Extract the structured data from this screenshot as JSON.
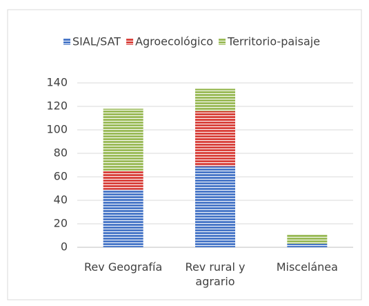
{
  "chart_data": {
    "type": "stacked_bar",
    "categories": [
      "Rev Geografía",
      "Rev rural y agrario",
      "Miscelánea"
    ],
    "series": [
      {
        "name": "SIAL/SAT",
        "color": "#4a78c8",
        "values": [
          49,
          69,
          3
        ]
      },
      {
        "name": "Agroecológico",
        "color": "#d9433d",
        "values": [
          16,
          47,
          0
        ]
      },
      {
        "name": "Territorio-paisaje",
        "color": "#9bbb59",
        "values": [
          53,
          19,
          8
        ]
      }
    ],
    "ylim": [
      0,
      140
    ],
    "yticks": [
      0,
      20,
      40,
      60,
      80,
      100,
      120,
      140
    ],
    "grid": true,
    "legend": "top"
  }
}
